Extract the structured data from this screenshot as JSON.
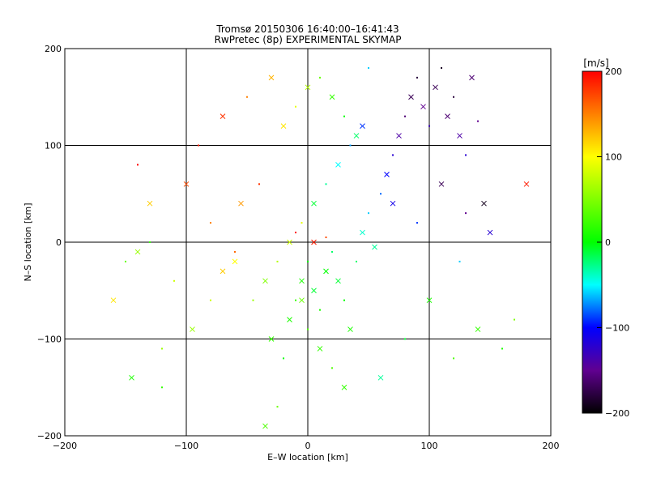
{
  "chart_data": {
    "type": "scatter",
    "title": "Tromsø 20150306 16:40:00–16:41:43",
    "subtitle": "RwPretec (8p) EXPERIMENTAL SKYMAP",
    "xlabel": "E–W location [km]",
    "ylabel": "N–S location [km]",
    "xlim": [
      -200,
      200
    ],
    "ylim": [
      -200,
      200
    ],
    "xticks": [
      "−200",
      "−100",
      "0",
      "100",
      "200"
    ],
    "yticks": [
      "−200",
      "−100",
      "0",
      "100",
      "200"
    ],
    "grid": true,
    "colorbar": {
      "title": "[m/s]",
      "range": [
        -200,
        200
      ],
      "ticks": [
        "200",
        "100",
        "0",
        "−100",
        "−200"
      ]
    },
    "markers": [
      "dot",
      "cross"
    ],
    "series": [
      {
        "points": [
          [
            -150,
            -20,
            40
          ],
          [
            -140,
            -10,
            60
          ],
          [
            -130,
            0,
            20
          ],
          [
            -145,
            -140,
            10
          ],
          [
            -120,
            -150,
            20
          ],
          [
            -95,
            -90,
            60
          ],
          [
            -80,
            -60,
            80
          ],
          [
            -70,
            -30,
            120
          ],
          [
            -60,
            -10,
            160
          ],
          [
            -55,
            40,
            140
          ],
          [
            -40,
            60,
            180
          ],
          [
            -30,
            -100,
            20
          ],
          [
            -20,
            -120,
            0
          ],
          [
            -15,
            -80,
            10
          ],
          [
            -10,
            -60,
            20
          ],
          [
            -5,
            -40,
            10
          ],
          [
            0,
            -20,
            0
          ],
          [
            5,
            -50,
            -10
          ],
          [
            10,
            -70,
            10
          ],
          [
            15,
            -30,
            0
          ],
          [
            20,
            -10,
            -20
          ],
          [
            25,
            -40,
            -10
          ],
          [
            30,
            -60,
            0
          ],
          [
            35,
            -90,
            10
          ],
          [
            40,
            -20,
            -20
          ],
          [
            45,
            10,
            -40
          ],
          [
            50,
            30,
            -60
          ],
          [
            55,
            -5,
            -30
          ],
          [
            60,
            50,
            -80
          ],
          [
            65,
            70,
            -100
          ],
          [
            70,
            90,
            -120
          ],
          [
            75,
            110,
            -140
          ],
          [
            80,
            130,
            -160
          ],
          [
            85,
            150,
            -170
          ],
          [
            90,
            170,
            -180
          ],
          [
            95,
            140,
            -150
          ],
          [
            100,
            120,
            -130
          ],
          [
            105,
            160,
            -170
          ],
          [
            110,
            180,
            -190
          ],
          [
            115,
            130,
            -160
          ],
          [
            120,
            150,
            -180
          ],
          [
            125,
            110,
            -140
          ],
          [
            130,
            90,
            -120
          ],
          [
            135,
            170,
            -160
          ],
          [
            140,
            125,
            -150
          ],
          [
            -20,
            120,
            110
          ],
          [
            -10,
            140,
            90
          ],
          [
            0,
            160,
            70
          ],
          [
            10,
            170,
            40
          ],
          [
            20,
            150,
            20
          ],
          [
            30,
            130,
            0
          ],
          [
            40,
            110,
            -20
          ],
          [
            50,
            180,
            -60
          ],
          [
            -30,
            170,
            130
          ],
          [
            -50,
            150,
            150
          ],
          [
            -70,
            130,
            180
          ],
          [
            -90,
            100,
            190
          ],
          [
            -100,
            60,
            170
          ],
          [
            -80,
            20,
            150
          ],
          [
            -60,
            -20,
            100
          ],
          [
            -10,
            10,
            200
          ],
          [
            5,
            0,
            190
          ],
          [
            15,
            5,
            170
          ],
          [
            -5,
            -60,
            40
          ],
          [
            0,
            -90,
            30
          ],
          [
            10,
            -110,
            20
          ],
          [
            20,
            -130,
            30
          ],
          [
            30,
            -150,
            20
          ],
          [
            -25,
            -170,
            40
          ],
          [
            -35,
            -190,
            30
          ],
          [
            -140,
            80,
            200
          ],
          [
            -130,
            40,
            120
          ],
          [
            -110,
            -40,
            80
          ],
          [
            -160,
            -60,
            110
          ],
          [
            -120,
            -110,
            60
          ],
          [
            60,
            -140,
            -30
          ],
          [
            80,
            -100,
            -10
          ],
          [
            100,
            -60,
            10
          ],
          [
            120,
            -120,
            30
          ],
          [
            140,
            -90,
            20
          ],
          [
            160,
            -110,
            10
          ],
          [
            180,
            60,
            190
          ],
          [
            170,
            -80,
            50
          ],
          [
            150,
            10,
            -120
          ],
          [
            130,
            30,
            -150
          ],
          [
            110,
            60,
            -170
          ],
          [
            90,
            20,
            -90
          ],
          [
            70,
            40,
            -110
          ],
          [
            125,
            -20,
            -60
          ],
          [
            145,
            40,
            -190
          ],
          [
            -45,
            -60,
            60
          ],
          [
            -35,
            -40,
            50
          ],
          [
            -25,
            -20,
            70
          ],
          [
            -15,
            0,
            80
          ],
          [
            -5,
            20,
            90
          ],
          [
            5,
            40,
            -10
          ],
          [
            15,
            60,
            -30
          ],
          [
            25,
            80,
            -50
          ],
          [
            35,
            100,
            -70
          ],
          [
            45,
            120,
            -90
          ]
        ]
      }
    ]
  }
}
